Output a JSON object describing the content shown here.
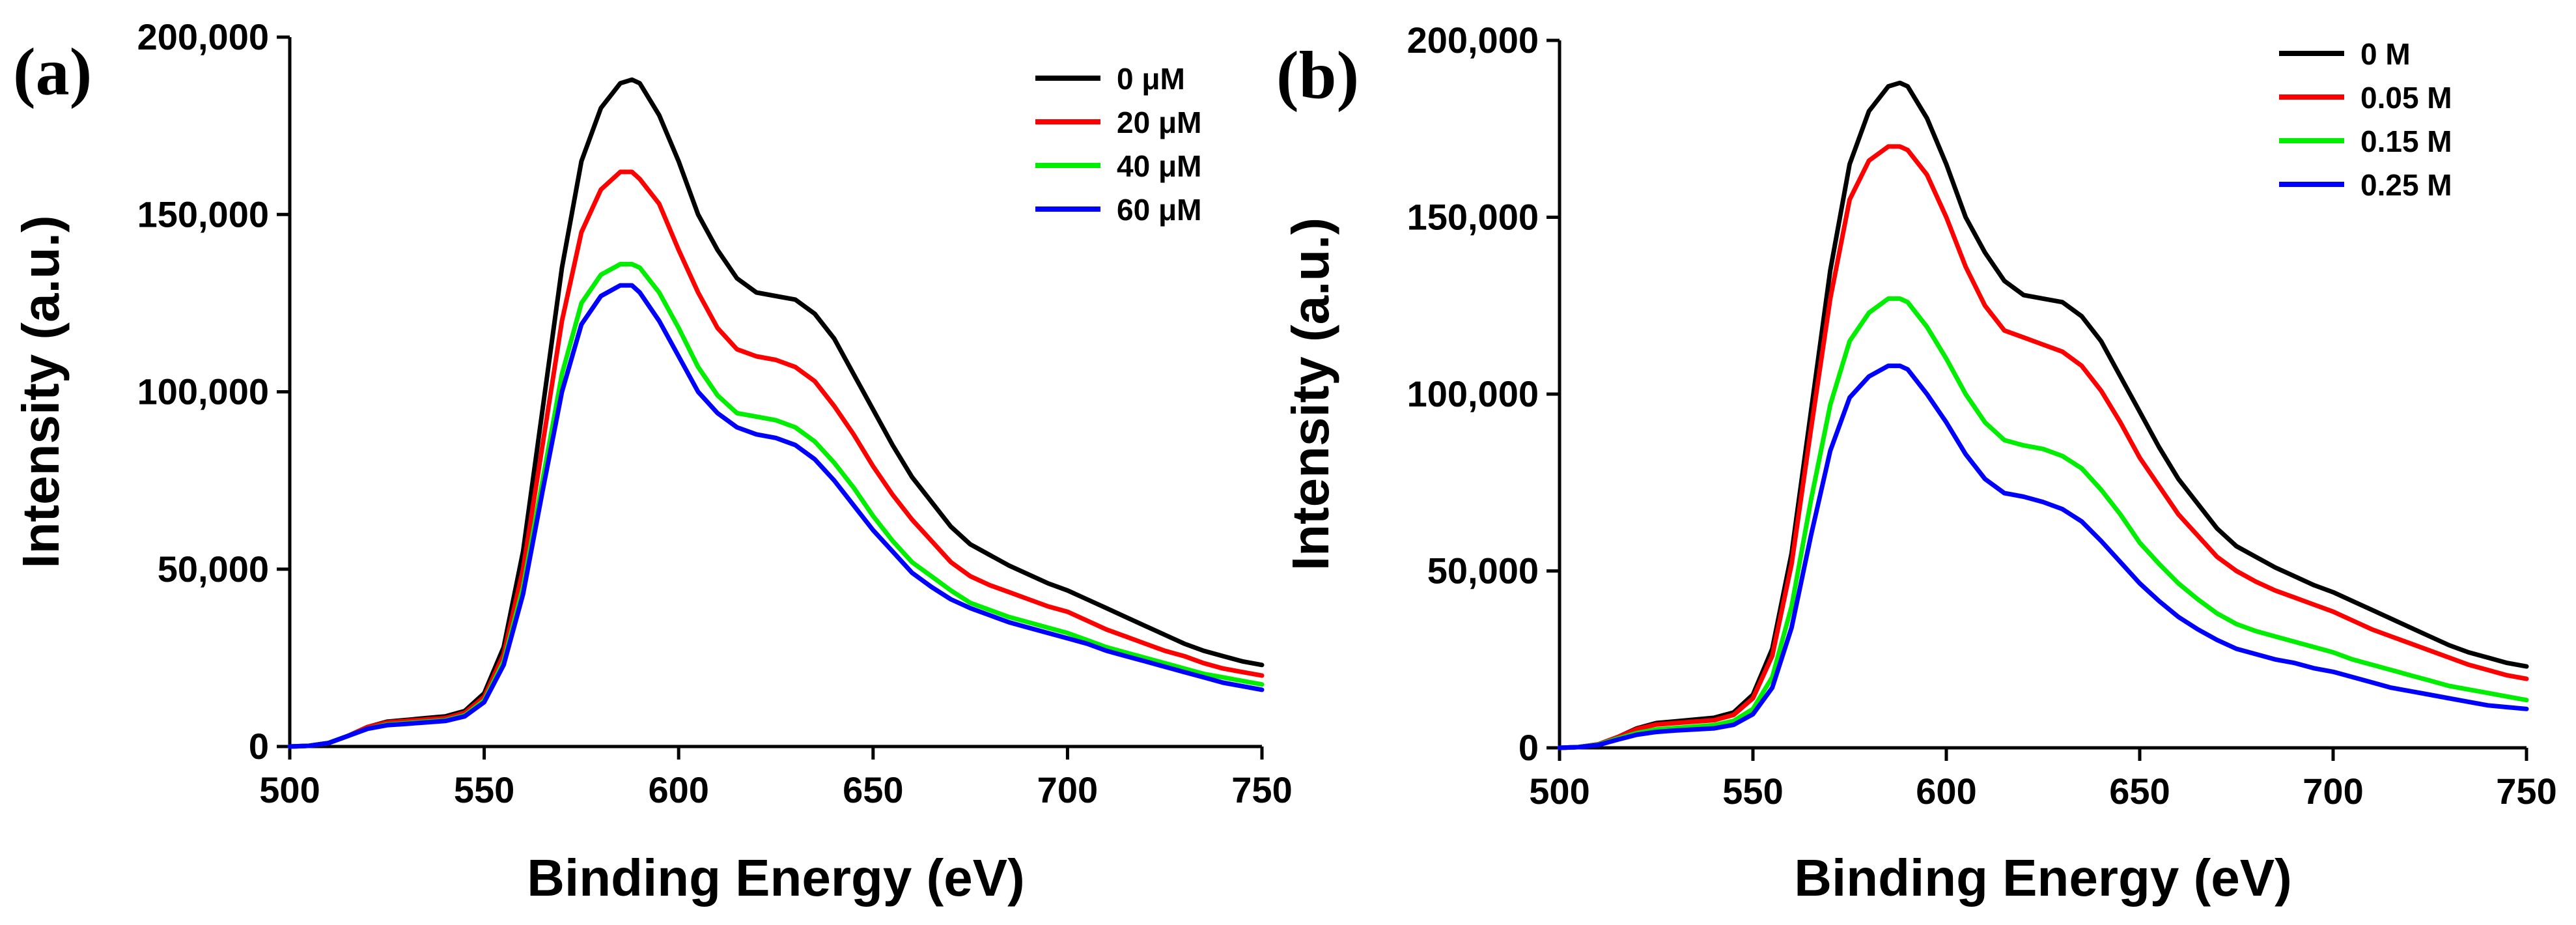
{
  "chart_data": [
    {
      "type": "line",
      "panel_label": "(a)",
      "title": "",
      "xlabel": "Binding Energy (eV)",
      "ylabel": "Intensity (a.u.)",
      "xlim": [
        500,
        750
      ],
      "ylim": [
        0,
        200000
      ],
      "xticks": [
        500,
        550,
        600,
        650,
        700,
        750
      ],
      "xtick_labels": [
        "500",
        "550",
        "600",
        "650",
        "700",
        "750"
      ],
      "yticks": [
        0,
        50000,
        100000,
        150000,
        200000
      ],
      "ytick_labels": [
        "0",
        "50,000",
        "100,000",
        "150,000",
        "200,000"
      ],
      "legend_position": "top-right",
      "grid": false,
      "x": [
        500,
        505,
        510,
        515,
        520,
        525,
        530,
        535,
        540,
        545,
        550,
        555,
        560,
        565,
        570,
        575,
        580,
        585,
        588,
        590,
        595,
        600,
        605,
        610,
        615,
        620,
        625,
        630,
        635,
        640,
        645,
        650,
        655,
        660,
        665,
        670,
        675,
        680,
        685,
        690,
        695,
        700,
        705,
        710,
        715,
        720,
        725,
        730,
        735,
        740,
        745,
        750
      ],
      "series": [
        {
          "name": "0 μM",
          "color": "#000000",
          "values": [
            0,
            200,
            1000,
            3000,
            5500,
            7000,
            7500,
            8000,
            8500,
            10000,
            15000,
            28000,
            55000,
            95000,
            135000,
            165000,
            180000,
            187000,
            188000,
            187000,
            178000,
            165000,
            150000,
            140000,
            132000,
            128000,
            127000,
            126000,
            122000,
            115000,
            105000,
            95000,
            85000,
            76000,
            69000,
            62000,
            57000,
            54000,
            51000,
            48500,
            46000,
            44000,
            41500,
            39000,
            36500,
            34000,
            31500,
            29000,
            27000,
            25500,
            24000,
            23000
          ]
        },
        {
          "name": "20 μM",
          "color": "#ff0000",
          "values": [
            0,
            200,
            1000,
            3000,
            5500,
            6800,
            7200,
            7600,
            8000,
            9500,
            14000,
            26000,
            50000,
            85000,
            120000,
            145000,
            157000,
            162000,
            162000,
            160000,
            153000,
            140000,
            128000,
            118000,
            112000,
            110000,
            109000,
            107000,
            103000,
            96000,
            88000,
            79000,
            71000,
            64000,
            58000,
            52000,
            48000,
            45500,
            43500,
            41500,
            39500,
            38000,
            35500,
            33000,
            31000,
            29000,
            27000,
            25500,
            23500,
            22000,
            21000,
            20000
          ]
        },
        {
          "name": "40 μM",
          "color": "#00ee00",
          "values": [
            0,
            200,
            1000,
            3000,
            5000,
            6200,
            6600,
            7000,
            7400,
            8800,
            13000,
            24000,
            45000,
            75000,
            105000,
            125000,
            133000,
            136000,
            136000,
            135000,
            128000,
            118000,
            107000,
            99000,
            94000,
            93000,
            92000,
            90000,
            86000,
            80000,
            73000,
            65000,
            58000,
            52000,
            48000,
            44000,
            40500,
            38500,
            36500,
            35000,
            33500,
            32000,
            30000,
            28000,
            26500,
            25000,
            23500,
            22000,
            20500,
            19500,
            18500,
            17500
          ]
        },
        {
          "name": "60 μM",
          "color": "#0000ff",
          "values": [
            0,
            200,
            1000,
            3000,
            5000,
            6000,
            6400,
            6800,
            7200,
            8500,
            12500,
            23000,
            43000,
            72000,
            100000,
            119000,
            127000,
            130000,
            130000,
            128000,
            120000,
            110000,
            100000,
            94000,
            90000,
            88000,
            87000,
            85000,
            81000,
            75000,
            68000,
            61000,
            55000,
            49000,
            45000,
            41500,
            39000,
            37000,
            35000,
            33500,
            32000,
            30500,
            29000,
            27000,
            25500,
            24000,
            22500,
            21000,
            19500,
            18000,
            17000,
            16000
          ]
        }
      ]
    },
    {
      "type": "line",
      "panel_label": "(b)",
      "title": "",
      "xlabel": "Binding Energy (eV)",
      "ylabel": "Intensity (a.u.)",
      "xlim": [
        500,
        750
      ],
      "ylim": [
        0,
        200000
      ],
      "xticks": [
        500,
        550,
        600,
        650,
        700,
        750
      ],
      "xtick_labels": [
        "500",
        "550",
        "600",
        "650",
        "700",
        "750"
      ],
      "yticks": [
        0,
        50000,
        100000,
        150000,
        200000
      ],
      "ytick_labels": [
        "0",
        "50,000",
        "100,000",
        "150,000",
        "200,000"
      ],
      "legend_position": "top-right",
      "grid": false,
      "x": [
        500,
        505,
        510,
        515,
        520,
        525,
        530,
        535,
        540,
        545,
        550,
        555,
        560,
        565,
        570,
        575,
        580,
        585,
        588,
        590,
        595,
        600,
        605,
        610,
        615,
        620,
        625,
        630,
        635,
        640,
        645,
        650,
        655,
        660,
        665,
        670,
        675,
        680,
        685,
        690,
        695,
        700,
        705,
        710,
        715,
        720,
        725,
        730,
        735,
        740,
        745,
        750
      ],
      "series": [
        {
          "name": "0 M",
          "color": "#000000",
          "values": [
            0,
            200,
            1000,
            3000,
            5500,
            7000,
            7500,
            8000,
            8500,
            10000,
            15000,
            28000,
            55000,
            95000,
            135000,
            165000,
            180000,
            187000,
            188000,
            187000,
            178000,
            165000,
            150000,
            140000,
            132000,
            128000,
            127000,
            126000,
            122000,
            115000,
            105000,
            95000,
            85000,
            76000,
            69000,
            62000,
            57000,
            54000,
            51000,
            48500,
            46000,
            44000,
            41500,
            39000,
            36500,
            34000,
            31500,
            29000,
            27000,
            25500,
            24000,
            23000
          ]
        },
        {
          "name": "0.05 M",
          "color": "#ff0000",
          "values": [
            0,
            200,
            1000,
            3000,
            5300,
            6600,
            7000,
            7400,
            7800,
            9300,
            14000,
            26000,
            52000,
            90000,
            127000,
            155000,
            166000,
            170000,
            170000,
            169000,
            162000,
            150000,
            136000,
            125000,
            118000,
            116000,
            114000,
            112000,
            108000,
            101000,
            92000,
            82000,
            74000,
            66000,
            60000,
            54000,
            50000,
            47000,
            44500,
            42500,
            40500,
            38500,
            36000,
            33500,
            31500,
            29500,
            27500,
            25500,
            23500,
            22000,
            20500,
            19500
          ]
        },
        {
          "name": "0.15 M",
          "color": "#00ee00",
          "values": [
            0,
            200,
            900,
            2600,
            4200,
            5200,
            5600,
            6000,
            6400,
            7600,
            11000,
            20000,
            40000,
            70000,
            97000,
            115000,
            123000,
            127000,
            127000,
            126000,
            119000,
            110000,
            100000,
            92000,
            87000,
            85500,
            84500,
            82500,
            79000,
            73000,
            66000,
            58000,
            52000,
            46500,
            42000,
            38000,
            35000,
            33000,
            31500,
            30000,
            28500,
            27000,
            25000,
            23500,
            22000,
            20500,
            19000,
            17500,
            16500,
            15500,
            14500,
            13500
          ]
        },
        {
          "name": "0.25 M",
          "color": "#0000ff",
          "values": [
            0,
            200,
            800,
            2300,
            3700,
            4500,
            4900,
            5200,
            5500,
            6500,
            9500,
            17000,
            34000,
            60000,
            84000,
            99000,
            105000,
            108000,
            108000,
            107000,
            100000,
            92000,
            83000,
            76000,
            72000,
            71000,
            69500,
            67500,
            64000,
            58500,
            52500,
            46500,
            41500,
            37000,
            33500,
            30500,
            28000,
            26500,
            25000,
            24000,
            22500,
            21500,
            20000,
            18500,
            17000,
            16000,
            15000,
            14000,
            13000,
            12000,
            11500,
            11000
          ]
        }
      ]
    }
  ]
}
